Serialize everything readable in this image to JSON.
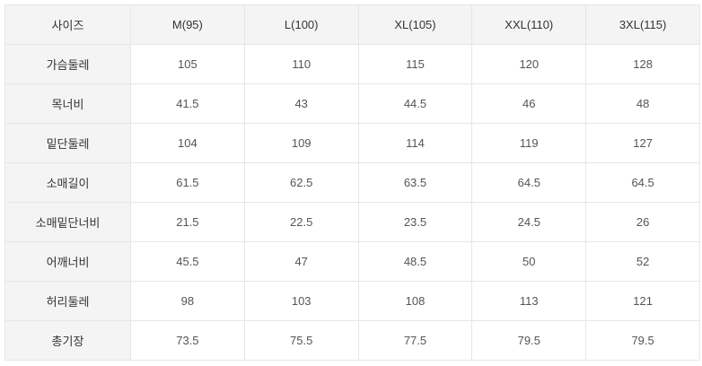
{
  "table": {
    "header": [
      "사이즈",
      "M(95)",
      "L(100)",
      "XL(105)",
      "XXL(110)",
      "3XL(115)"
    ],
    "rows": [
      [
        "가슴둘레",
        "105",
        "110",
        "115",
        "120",
        "128"
      ],
      [
        "목너비",
        "41.5",
        "43",
        "44.5",
        "46",
        "48"
      ],
      [
        "밑단둘레",
        "104",
        "109",
        "114",
        "119",
        "127"
      ],
      [
        "소매길이",
        "61.5",
        "62.5",
        "63.5",
        "64.5",
        "64.5"
      ],
      [
        "소매밑단너비",
        "21.5",
        "22.5",
        "23.5",
        "24.5",
        "26"
      ],
      [
        "어깨너비",
        "45.5",
        "47",
        "48.5",
        "50",
        "52"
      ],
      [
        "허리둘레",
        "98",
        "103",
        "108",
        "113",
        "121"
      ],
      [
        "총기장",
        "73.5",
        "75.5",
        "77.5",
        "79.5",
        "79.5"
      ]
    ]
  }
}
